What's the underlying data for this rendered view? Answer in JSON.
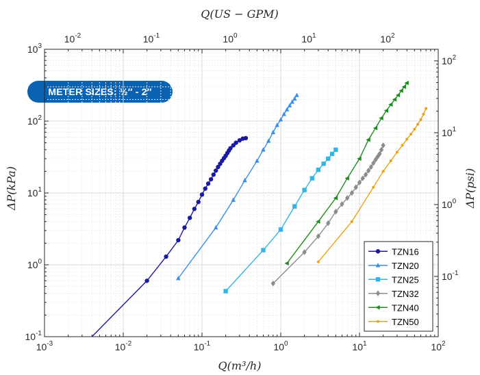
{
  "badge": {
    "text": "METER SIZES: ½″ - 2″",
    "color": "#0b62b0"
  },
  "chart_data": {
    "type": "line",
    "title": "",
    "xlabel": "Q(m³/h)",
    "ylabel": "ΔP(kPa)",
    "x2label": "Q(US − GPM)",
    "y2label": "ΔP(psi)",
    "xscale": "log",
    "yscale": "log",
    "xlim": [
      0.001,
      100
    ],
    "ylim": [
      0.1,
      1000
    ],
    "x2lim": [
      0.0044,
      440
    ],
    "y2lim": [
      0.0145,
      145
    ],
    "x_ticks": [
      "10^-3",
      "10^-2",
      "10^-1",
      "10^0",
      "10^1",
      "10^2"
    ],
    "y_ticks": [
      "10^-1",
      "10^0",
      "10^1",
      "10^2",
      "10^3"
    ],
    "x2_ticks": [
      "10^-2",
      "10^-1",
      "10^0",
      "10^1",
      "10^2"
    ],
    "y2_ticks": [
      "10^-1",
      "10^0",
      "10^1",
      "10^2"
    ],
    "grid": true,
    "legend_position": "bottom-right",
    "series": [
      {
        "name": "TZN16",
        "color": "#1a1aa0",
        "marker": "circle",
        "x": [
          0.004,
          0.02,
          0.035,
          0.05,
          0.06,
          0.07,
          0.08,
          0.09,
          0.1,
          0.11,
          0.12,
          0.13,
          0.14,
          0.15,
          0.16,
          0.17,
          0.18,
          0.19,
          0.2,
          0.21,
          0.22,
          0.23,
          0.25,
          0.27,
          0.3,
          0.33,
          0.36
        ],
        "y": [
          0.1,
          0.6,
          1.3,
          2.2,
          3.3,
          4.5,
          6.0,
          7.5,
          9.5,
          11.5,
          13.5,
          15.5,
          18,
          20.5,
          23,
          25.5,
          28,
          30.5,
          33,
          36,
          39,
          42,
          46,
          50,
          54,
          57,
          58
        ],
        "markers_from": 1
      },
      {
        "name": "TZN20",
        "color": "#3b8ee8",
        "marker": "triangle",
        "x": [
          0.05,
          0.15,
          0.25,
          0.35,
          0.5,
          0.6,
          0.7,
          0.8,
          0.9,
          1.0,
          1.1,
          1.2,
          1.3,
          1.4,
          1.5,
          1.6
        ],
        "y": [
          0.65,
          3.3,
          8.0,
          15,
          28,
          40,
          53,
          70,
          88,
          105,
          125,
          145,
          165,
          185,
          205,
          230
        ]
      },
      {
        "name": "TZN25",
        "color": "#33b5e5",
        "marker": "square",
        "x": [
          0.2,
          0.6,
          1.0,
          1.5,
          2.0,
          2.5,
          3.0,
          3.5,
          4.0,
          4.5,
          5.0
        ],
        "y": [
          0.43,
          1.6,
          3.1,
          6.5,
          11,
          16,
          21,
          25.5,
          30,
          35,
          40
        ]
      },
      {
        "name": "TZN32",
        "color": "#8c8c8c",
        "marker": "diamond",
        "x": [
          0.8,
          2.0,
          3.0,
          4.0,
          5.0,
          6.0,
          7.0,
          8.0,
          9.0,
          10,
          11,
          12,
          13,
          14,
          15,
          16,
          17,
          18,
          19,
          20
        ],
        "y": [
          0.55,
          1.5,
          2.5,
          3.8,
          5.5,
          7.0,
          8.5,
          10,
          12,
          14,
          16,
          18,
          20.5,
          23,
          26,
          29,
          32,
          35,
          40,
          46
        ]
      },
      {
        "name": "TZN40",
        "color": "#1f8a1f",
        "marker": "triangle-left",
        "x": [
          1.2,
          3.0,
          5.0,
          7.0,
          10,
          13,
          16,
          19,
          22,
          25,
          28,
          31,
          34,
          37,
          40
        ],
        "y": [
          1.05,
          4.0,
          8.5,
          16,
          30,
          55,
          80,
          110,
          140,
          170,
          200,
          230,
          265,
          300,
          340
        ]
      },
      {
        "name": "TZN50",
        "color": "#e8a317",
        "marker": "point",
        "x": [
          3.0,
          8.0,
          15,
          20,
          25,
          30,
          35,
          40,
          45,
          50,
          55,
          60,
          65,
          70
        ],
        "y": [
          1.1,
          4.0,
          12,
          20,
          28,
          37,
          46,
          56,
          66,
          77,
          90,
          105,
          125,
          150
        ]
      }
    ]
  }
}
